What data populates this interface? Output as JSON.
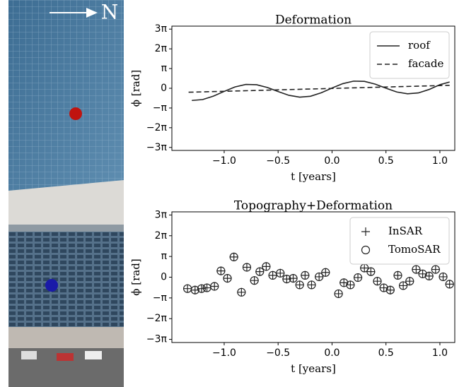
{
  "image_label": "N",
  "chart_data": [
    {
      "type": "line",
      "title": "Deformation",
      "x_label": "t [years]",
      "y_label": "ϕ [rad]",
      "xlim": [
        -1.485,
        1.138
      ],
      "ylim": [
        -9.9,
        9.9
      ],
      "xticks": [
        {
          "value": -1,
          "label": "−1.0"
        },
        {
          "value": -0.5,
          "label": "−0.5"
        },
        {
          "value": 0,
          "label": "0.0"
        },
        0.5,
        {
          "value": 1,
          "label": "1.0"
        }
      ],
      "yticks": [
        {
          "value": -9.4248,
          "label": "−3π"
        },
        {
          "value": -6.2832,
          "label": "−2π"
        },
        {
          "value": -3.1416,
          "label": "−π"
        },
        0,
        {
          "value": 3.1416,
          "label": "π"
        },
        {
          "value": 6.2832,
          "label": "2π"
        },
        {
          "value": 9.4248,
          "label": "3π"
        }
      ],
      "legend": "upper right",
      "series": [
        {
          "name": "roof",
          "color": "#222222",
          "linestyle": "solid",
          "x": [
            -1.3,
            -1.2,
            -1.1,
            -1.0,
            -0.9,
            -0.8,
            -0.7,
            -0.6,
            -0.5,
            -0.4,
            -0.3,
            -0.2,
            -0.1,
            0,
            0.1,
            0.2,
            0.3,
            0.4,
            0.5,
            0.6,
            0.7,
            0.8,
            0.9,
            1.0,
            1.09
          ],
          "values": [
            -1.94,
            -1.8,
            -1.25,
            -0.5,
            0.21,
            0.61,
            0.57,
            0.13,
            -0.52,
            -1.12,
            -1.41,
            -1.27,
            -0.72,
            0.04,
            0.74,
            1.14,
            1.1,
            0.66,
            0.01,
            -0.59,
            -0.88,
            -0.74,
            -0.19,
            0.57,
            1.0
          ]
        },
        {
          "name": "facade",
          "color": "#222222",
          "linestyle": "dashed",
          "x": [
            -1.33,
            1.09
          ],
          "values": [
            -0.63,
            0.47
          ]
        }
      ]
    },
    {
      "type": "scatter",
      "title": "Topography+Deformation",
      "x_label": "t [years]",
      "y_label": "ϕ [rad]",
      "xlim": [
        -1.485,
        1.138
      ],
      "ylim": [
        -9.9,
        9.9
      ],
      "xticks": [
        {
          "value": -1,
          "label": "−1.0"
        },
        {
          "value": -0.5,
          "label": "−0.5"
        },
        {
          "value": 0,
          "label": "0.0"
        },
        0.5,
        {
          "value": 1,
          "label": "1.0"
        }
      ],
      "yticks": [
        {
          "value": -9.4248,
          "label": "−3π"
        },
        {
          "value": -6.2832,
          "label": "−2π"
        },
        {
          "value": -3.1416,
          "label": "−π"
        },
        0,
        {
          "value": 3.1416,
          "label": "π"
        },
        {
          "value": 6.2832,
          "label": "2π"
        },
        {
          "value": 9.4248,
          "label": "3π"
        }
      ],
      "legend": "upper right",
      "x": [
        -1.34,
        -1.27,
        -1.21,
        -1.16,
        -1.09,
        -1.03,
        -0.97,
        -0.91,
        -0.84,
        -0.79,
        -0.72,
        -0.67,
        -0.61,
        -0.55,
        -0.48,
        -0.42,
        -0.36,
        -0.3,
        -0.25,
        -0.19,
        -0.12,
        -0.06,
        0.06,
        0.11,
        0.17,
        0.24,
        0.3,
        0.36,
        0.42,
        0.48,
        0.54,
        0.61,
        0.66,
        0.72,
        0.78,
        0.84,
        0.9,
        0.96,
        1.03,
        1.09
      ],
      "series": [
        {
          "name": "InSAR",
          "color": "#222222",
          "marker": "+",
          "values": [
            -1.73,
            -1.95,
            -1.73,
            -1.61,
            -1.39,
            0.95,
            -0.17,
            3.06,
            -2.28,
            1.5,
            -0.5,
            0.84,
            1.62,
            0.28,
            0.61,
            -0.28,
            -0.17,
            -1.17,
            0.28,
            -1.17,
            0.06,
            0.72,
            -2.51,
            -0.84,
            -1.17,
            -0.06,
            1.39,
            0.84,
            -0.61,
            -1.61,
            -1.95,
            0.28,
            -1.28,
            -0.61,
            1.17,
            0.5,
            0.17,
            1.17,
            0.06,
            -1.06
          ]
        },
        {
          "name": "TomoSAR",
          "color": "#222222",
          "marker": "o",
          "values": [
            -1.73,
            -1.95,
            -1.73,
            -1.61,
            -1.39,
            0.95,
            -0.17,
            3.06,
            -2.28,
            1.5,
            -0.5,
            0.84,
            1.62,
            0.28,
            0.61,
            -0.28,
            -0.17,
            -1.17,
            0.28,
            -1.17,
            0.06,
            0.72,
            -2.51,
            -0.84,
            -1.17,
            -0.06,
            1.39,
            0.84,
            -0.61,
            -1.61,
            -1.95,
            0.28,
            -1.28,
            -0.61,
            1.17,
            0.5,
            0.17,
            1.17,
            0.06,
            -1.06
          ]
        }
      ]
    }
  ]
}
